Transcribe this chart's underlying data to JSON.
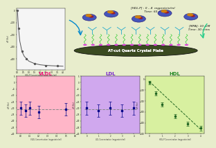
{
  "panel_bg": "#e8edcc",
  "top_plot": {
    "x": [
      0.0,
      0.05,
      0.1,
      0.2,
      0.4,
      0.6,
      0.8,
      1.0,
      1.5,
      2.0,
      2.5,
      3.0,
      3.5,
      4.0
    ],
    "y": [
      0,
      -80,
      -150,
      -250,
      -340,
      -380,
      -400,
      -420,
      -440,
      -450,
      -455,
      -458,
      -460,
      -462
    ],
    "color": "#555555",
    "bg": "#f5f5f5",
    "xlabel": "HDL-P Concentration (mgprotein/ml)",
    "ylabel": "dF (Hz)"
  },
  "bottom_panels": [
    {
      "label": "VLDL",
      "bg": "#ffb6c8",
      "label_color": "#ee1177",
      "x": [
        0.0,
        0.05,
        0.1,
        0.2,
        0.5
      ],
      "y": [
        -20,
        -22,
        -20,
        -23,
        -21
      ],
      "yerr": [
        5,
        5,
        5,
        5,
        5
      ],
      "fit_x": [
        -0.05,
        0.55
      ],
      "fit_y": [
        -21,
        -21
      ],
      "xlabel": "VLDL Concentration (mgprotein/ml)",
      "ylabel": "dF (Hz)",
      "data_color": "#000088",
      "fit_color": "#888888",
      "xlim": [
        -0.05,
        0.6
      ],
      "ylim": [
        -40,
        5
      ]
    },
    {
      "label": "LDL",
      "bg": "#d0a8ee",
      "label_color": "#7722cc",
      "x": [
        0.0,
        1.0,
        2.0,
        3.0,
        4.0
      ],
      "y": [
        -20,
        -22,
        -20,
        -22,
        -20
      ],
      "yerr": [
        5,
        5,
        5,
        5,
        5
      ],
      "fit_x": [
        -0.2,
        4.2
      ],
      "fit_y": [
        -21,
        -21
      ],
      "xlabel": "LDL Concentration (mgprotein/ml)",
      "ylabel": "dF (Hz)",
      "data_color": "#000088",
      "fit_color": "#888888",
      "xlim": [
        -0.5,
        4.5
      ],
      "ylim": [
        -40,
        5
      ]
    },
    {
      "label": "HDL",
      "bg": "#d8f0a0",
      "label_color": "#228822",
      "x": [
        0.0,
        0.5,
        1.0,
        2.0,
        3.0,
        4.0
      ],
      "y": [
        -30,
        -130,
        -230,
        -340,
        -410,
        -450
      ],
      "yerr": [
        15,
        20,
        20,
        20,
        20,
        20
      ],
      "fit_x": [
        0.0,
        4.0
      ],
      "fit_y": [
        -20,
        -460
      ],
      "xlabel": "HDL-P Concentration (mgprotein/ml)",
      "ylabel": "dF (Hz)",
      "data_color": "#226622",
      "fit_color": "#226622",
      "xlim": [
        -0.3,
        4.3
      ],
      "ylim": [
        -500,
        30
      ]
    }
  ],
  "crystal_disk_color": "#3a4a20",
  "crystal_rim_color": "#111111",
  "crystal_text_color": "#ffffff",
  "mpa_dots_color": "#dd44dd",
  "linker_color": "#33cc33",
  "hdl_blue": "#3344bb",
  "hdl_dark": "#221166",
  "hdl_orange": "#dd8800",
  "antibody_color": "#22aacc",
  "arrow_blue": "#0088cc",
  "arrow_green": "#22cc88",
  "text_color": "#111111",
  "anno_italic": true
}
